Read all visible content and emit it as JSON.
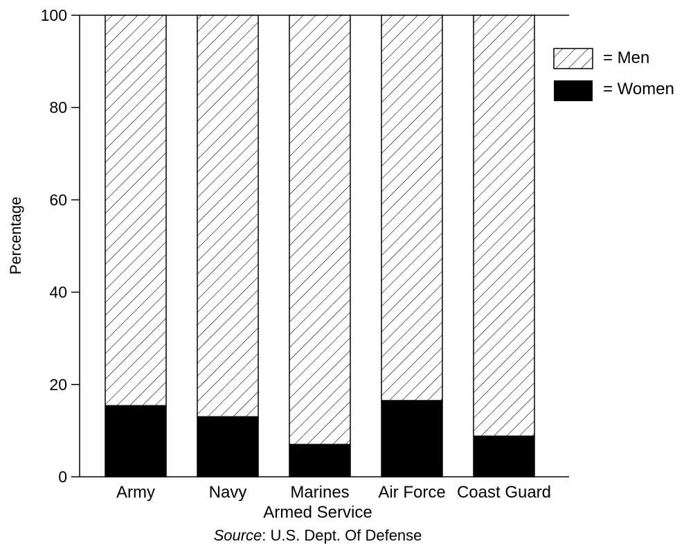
{
  "chart_data": {
    "type": "bar",
    "stacked": true,
    "categories": [
      "Army",
      "Navy",
      "Marines",
      "Air Force",
      "Coast Guard"
    ],
    "series": [
      {
        "name": "Men",
        "values": [
          84.6,
          87,
          93,
          83.5,
          91.2
        ],
        "fill": "hatched",
        "color": "#000000"
      },
      {
        "name": "Women",
        "values": [
          15.4,
          13,
          7,
          16.5,
          8.8
        ],
        "fill": "solid",
        "color": "#000000"
      }
    ],
    "xlabel": "Armed Service",
    "ylabel": "Percentage",
    "ylim": [
      0,
      100
    ],
    "yticks": [
      0,
      20,
      40,
      60,
      80,
      100
    ],
    "grid": false,
    "legend": {
      "position": "top-right",
      "entries": [
        {
          "label": "= Men",
          "series": "Men"
        },
        {
          "label": "= Women",
          "series": "Women"
        }
      ]
    },
    "source": {
      "prefix": "Source",
      "text": ": U.S. Dept. Of Defense"
    }
  }
}
